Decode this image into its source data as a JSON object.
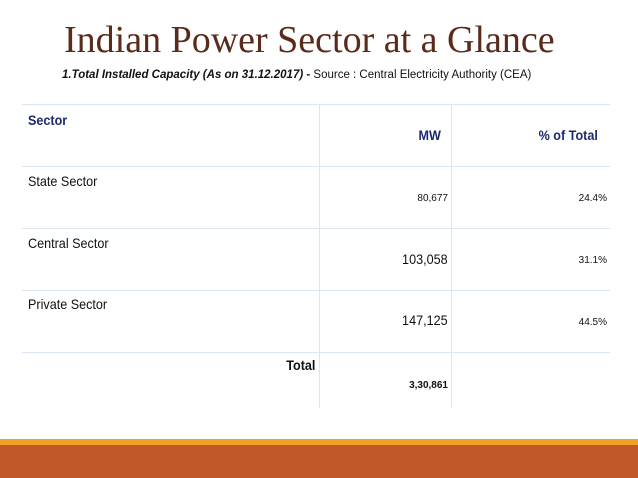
{
  "slide": {
    "title": "Indian Power Sector at a Glance",
    "subtitle_emphasis": "1.Total Installed Capacity  (As on 31.12.2017) -",
    "subtitle_rest": " Source : Central Electricity Authority (CEA)"
  },
  "table": {
    "headers": {
      "sector": "Sector",
      "mw": "MW",
      "percent": "% of Total"
    },
    "rows": [
      {
        "sector": "State Sector",
        "mw": "80,677",
        "percent": "24.4%"
      },
      {
        "sector": "Central Sector",
        "mw": "103,058",
        "percent": "31.1%"
      },
      {
        "sector": "Private Sector",
        "mw": "147,125",
        "percent": "44.5%"
      }
    ],
    "total": {
      "label": "Total",
      "mw": "3,30,861"
    }
  },
  "colors": {
    "title": "#5a2a1a",
    "header_text": "#1c2a6e",
    "footer_gold": "#f0a228",
    "footer_rust": "#c0582a"
  }
}
